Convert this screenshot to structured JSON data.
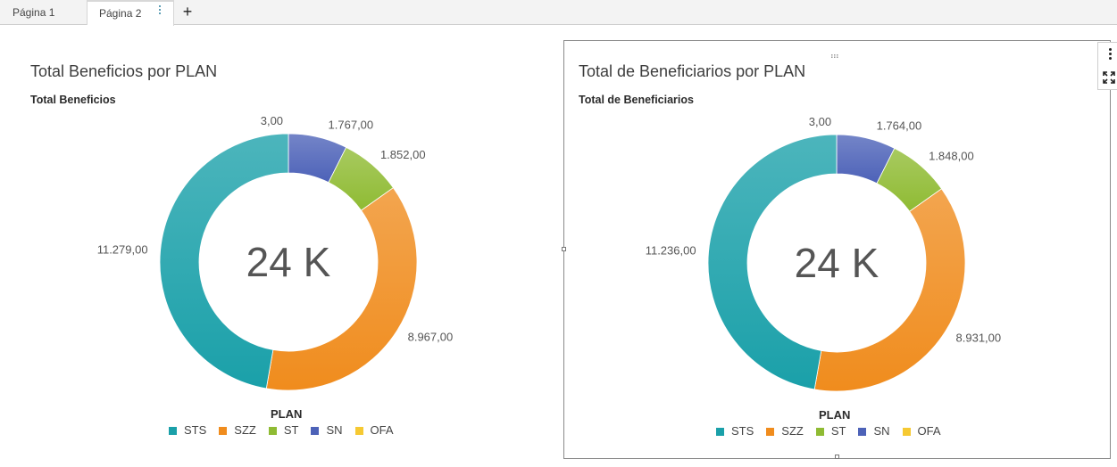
{
  "tabs": [
    {
      "label": "Página 1"
    },
    {
      "label": "Página 2"
    }
  ],
  "tab_add_label": "+",
  "colors": {
    "STS": "#1aa0a9",
    "SZZ": "#f08c1d",
    "ST": "#8fbb33",
    "SN": "#4d62b8",
    "OFA": "#f6c932"
  },
  "chart_data": [
    {
      "type": "pie",
      "title": "Total Beneficios por PLAN",
      "subtitle": "Total Beneficios",
      "center_label": "24 K",
      "legend_title": "PLAN",
      "categories": [
        "STS",
        "SZZ",
        "ST",
        "SN",
        "OFA"
      ],
      "values": [
        11279,
        8967,
        1852,
        1767,
        3
      ],
      "data_labels": [
        "11.279,00",
        "8.967,00",
        "1.852,00",
        "1.767,00",
        "3,00"
      ]
    },
    {
      "type": "pie",
      "title": "Total de Beneficiarios por PLAN",
      "subtitle": "Total de Beneficiarios",
      "center_label": "24 K",
      "legend_title": "PLAN",
      "categories": [
        "STS",
        "SZZ",
        "ST",
        "SN",
        "OFA"
      ],
      "values": [
        11236,
        8931,
        1848,
        1764,
        3
      ],
      "data_labels": [
        "11.236,00",
        "8.931,00",
        "1.848,00",
        "1.764,00",
        "3,00"
      ]
    }
  ]
}
